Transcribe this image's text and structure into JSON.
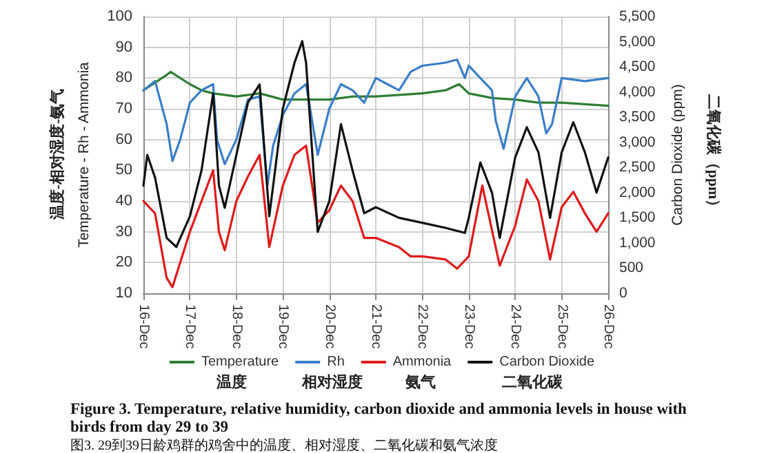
{
  "chart_data": {
    "type": "line",
    "title": "Figure 3. Temperature, relative humidity, carbon dioxide and ammonia levels in house with birds from day 29 to 39",
    "subtitle": "图3. 29到39日龄鸡群的鸡舍中的温度、相对湿度、二氧化碳和氨气浓度",
    "ylabel": "Temperature - Rh - Ammonia",
    "y2label": "Carbon Dioxide (ppm)",
    "annotations": [
      "温度-相对湿度-氨气",
      "二氧化碳（ppm）",
      "温度",
      "相对湿度",
      "氨气",
      "二氧化碳"
    ],
    "xlim": [
      "--12-16",
      "--12-26"
    ],
    "xticks": [
      {
        "value": "--12-16",
        "label": "16-Dec"
      },
      {
        "value": "--12-17",
        "label": "17-Dec"
      },
      {
        "value": "--12-18",
        "label": "18-Dec"
      },
      {
        "value": "--12-19",
        "label": "19-Dec"
      },
      {
        "value": "--12-20",
        "label": "20-Dec"
      },
      {
        "value": "--12-21",
        "label": "21-Dec"
      },
      {
        "value": "--12-22",
        "label": "22-Dec"
      },
      {
        "value": "--12-23",
        "label": "23-Dec"
      },
      {
        "value": "--12-24",
        "label": "24-Dec"
      },
      {
        "value": "--12-25",
        "label": "25-Dec"
      },
      {
        "value": "--12-26",
        "label": "26-Dec"
      }
    ],
    "ylim": [
      10,
      100
    ],
    "yticks": [
      10,
      20,
      30,
      40,
      50,
      60,
      70,
      80,
      90,
      100
    ],
    "y2lim": [
      0,
      5500
    ],
    "y2ticks": [
      0,
      500,
      {
        "value": 1000,
        "label": "1,000"
      },
      {
        "value": 1500,
        "label": "1,500"
      },
      {
        "value": 2000,
        "label": "2,000"
      },
      {
        "value": 2500,
        "label": "2,500"
      },
      {
        "value": 3000,
        "label": "3,000"
      },
      {
        "value": 3500,
        "label": "3,500"
      },
      {
        "value": 4000,
        "label": "4,000"
      },
      {
        "value": 4500,
        "label": "4,500"
      },
      {
        "value": 5000,
        "label": "5,000"
      },
      {
        "value": 5500,
        "label": "5,500"
      }
    ],
    "grid": true,
    "legend": "bottom",
    "marker": "none",
    "line_style": "solid",
    "series": [
      {
        "name": "Temperature",
        "color": "#2e7d32",
        "x": [
          "--12-16",
          "--12-16T12:00",
          "--12-16T14:00",
          "--12-17",
          "--12-17T06:00",
          "--12-17T12:00",
          "--12-18",
          "--12-18T12:00",
          "--12-19",
          "--12-19T12:00",
          "--12-20",
          "--12-20T12:00",
          "--12-21",
          "--12-22",
          "--12-22T12:00",
          "--12-22T19:00",
          "--12-23",
          "--12-23T12:00",
          "--12-24",
          "--12-24T12:00",
          "--12-25",
          "--12-25T12:00",
          "--12-26"
        ],
        "values": [
          76,
          81,
          82,
          78,
          76,
          75,
          74,
          75,
          73,
          73,
          73,
          74,
          74,
          75,
          76,
          78,
          75,
          73.5,
          73,
          72,
          72,
          71.5,
          71
        ]
      },
      {
        "name": "Rh",
        "color": "#3a7dc9",
        "x": [
          "--12-16",
          "--12-16T06:00",
          "--12-16T12:00",
          "--12-16T15:00",
          "--12-16T19:00",
          "--12-17",
          "--12-17T06:00",
          "--12-17T12:00",
          "--12-17T14:00",
          "--12-17T18:00",
          "--12-18",
          "--12-18T06:00",
          "--12-18T12:00",
          "--12-18T16:00",
          "--12-18T19:00",
          "--12-19",
          "--12-19T06:00",
          "--12-19T12:00",
          "--12-19T18:00",
          "--12-20",
          "--12-20T06:00",
          "--12-20T12:00",
          "--12-20T18:00",
          "--12-21",
          "--12-21T06:00",
          "--12-21T12:00",
          "--12-21T18:00",
          "--12-22",
          "--12-22T12:00",
          "--12-22T18:00",
          "--12-22T22:00",
          "--12-23",
          "--12-23T06:00",
          "--12-23T12:00",
          "--12-23T14:00",
          "--12-23T18:00",
          "--12-24",
          "--12-24T06:00",
          "--12-24T12:00",
          "--12-24T16:00",
          "--12-24T19:00",
          "--12-25",
          "--12-25T12:00",
          "--12-26"
        ],
        "values": [
          76,
          79,
          65,
          53,
          60,
          72,
          76,
          78,
          60,
          52,
          60,
          73,
          74,
          45,
          58,
          68,
          75,
          78,
          55,
          70,
          78,
          76,
          72,
          80,
          78,
          76,
          82,
          84,
          85,
          86,
          80,
          84,
          80,
          76,
          66,
          57,
          74,
          80,
          74,
          62,
          65,
          80,
          79,
          80
        ]
      },
      {
        "name": "Ammonia",
        "color": "#e0191b",
        "x": [
          "--12-16",
          "--12-16T06:00",
          "--12-16T12:00",
          "--12-16T15:00",
          "--12-16T19:00",
          "--12-17",
          "--12-17T06:00",
          "--12-17T12:00",
          "--12-17T15:00",
          "--12-17T18:00",
          "--12-18",
          "--12-18T06:00",
          "--12-18T12:00",
          "--12-18T17:00",
          "--12-19",
          "--12-19T06:00",
          "--12-19T12:00",
          "--12-19T18:00",
          "--12-20",
          "--12-20T06:00",
          "--12-20T12:00",
          "--12-20T18:00",
          "--12-21",
          "--12-21T12:00",
          "--12-21T18:00",
          "--12-22",
          "--12-22T12:00",
          "--12-22T18:00",
          "--12-23",
          "--12-23T07:00",
          "--12-23T16:00",
          "--12-24",
          "--12-24T06:00",
          "--12-24T12:00",
          "--12-24T18:00",
          "--12-25",
          "--12-25T06:00",
          "--12-25T12:00",
          "--12-25T18:00",
          "--12-26"
        ],
        "values": [
          40,
          36,
          15,
          12,
          20,
          30,
          40,
          50,
          30,
          24,
          40,
          48,
          55,
          25,
          45,
          55,
          58,
          33,
          37,
          45,
          40,
          28,
          28,
          25,
          22,
          22,
          21,
          18,
          22,
          45,
          19,
          32,
          47,
          40,
          21,
          38,
          43,
          36,
          30,
          36
        ]
      },
      {
        "name": "Carbon Dioxide",
        "color": "#111111",
        "axis": "y2",
        "x": [
          "--12-16",
          "--12-16T02:00",
          "--12-16T06:00",
          "--12-16T12:00",
          "--12-16T17:00",
          "--12-17",
          "--12-17T06:00",
          "--12-17T12:00",
          "--12-17T15:00",
          "--12-17T18:00",
          "--12-18",
          "--12-18T06:00",
          "--12-18T12:00",
          "--12-18T17:00",
          "--12-19",
          "--12-19T06:00",
          "--12-19T10:00",
          "--12-19T12:00",
          "--12-19T18:00",
          "--12-20",
          "--12-20T06:00",
          "--12-20T12:00",
          "--12-20T18:00",
          "--12-21",
          "--12-21T12:00",
          "--12-22",
          "--12-22T12:00",
          "--12-22T22:00",
          "--12-23",
          "--12-23T06:00",
          "--12-23T12:00",
          "--12-23T16:00",
          "--12-24",
          "--12-24T06:00",
          "--12-24T12:00",
          "--12-24T18:00",
          "--12-25",
          "--12-25T06:00",
          "--12-25T12:00",
          "--12-25T18:00",
          "--12-26"
        ],
        "values": [
          2140,
          2750,
          2300,
          1100,
          920,
          1530,
          2440,
          3970,
          2140,
          1700,
          2750,
          3790,
          4150,
          1530,
          3670,
          4580,
          5010,
          4580,
          1220,
          1830,
          3360,
          2440,
          1590,
          1710,
          1500,
          1400,
          1300,
          1200,
          1500,
          2600,
          2000,
          1100,
          2700,
          3300,
          2800,
          1500,
          2800,
          3400,
          2800,
          2000,
          2700
        ]
      }
    ]
  }
}
